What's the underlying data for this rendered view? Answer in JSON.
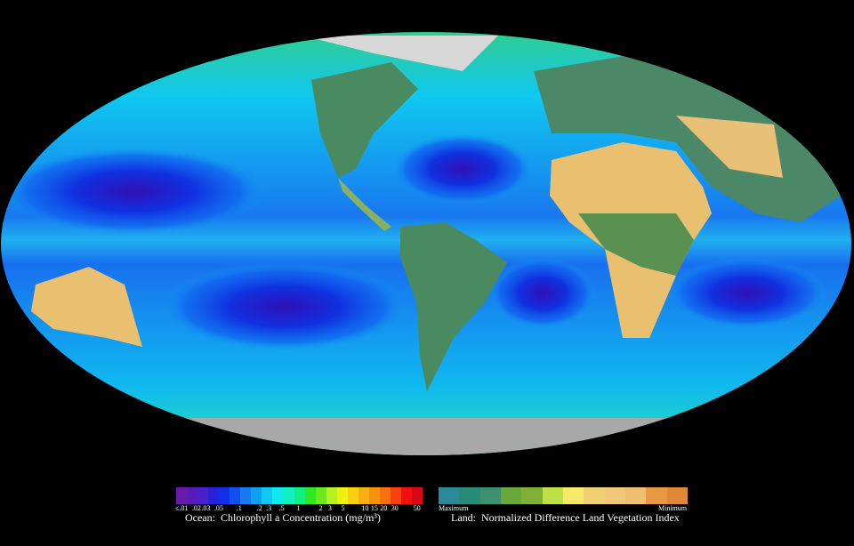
{
  "ocean_legend": {
    "caption_prefix": "Ocean:",
    "caption": "Chlorophyll a Concentration (mg/m³)",
    "ticks": [
      "≤.01",
      ".02",
      ".03",
      ".05",
      ".1",
      ".2",
      ".3",
      ".5",
      "1",
      "2",
      "3",
      "5",
      "10",
      "15",
      "20",
      "30",
      "50"
    ],
    "colors": [
      "#6a1aa8",
      "#5a1ab8",
      "#4a20c8",
      "#2a20d8",
      "#1030e8",
      "#1050f0",
      "#1a78f0",
      "#10a0f0",
      "#10c8f0",
      "#10e8f0",
      "#10f0c0",
      "#10f080",
      "#30e820",
      "#70e820",
      "#b8f020",
      "#f0f010",
      "#f8d010",
      "#f8b010",
      "#f89010",
      "#f87010",
      "#f84010",
      "#f01010",
      "#d80818"
    ]
  },
  "land_legend": {
    "caption_prefix": "Land:",
    "caption": "Normalized Difference Land Vegetation Index",
    "max_label": "Maximum",
    "min_label": "Minimum",
    "colors": [
      "#2a8a9a",
      "#2a8a78",
      "#3a9070",
      "#68a838",
      "#80b038",
      "#c0e048",
      "#f8e868",
      "#f0d070",
      "#f0c878",
      "#f0c070",
      "#e89840",
      "#e08838"
    ]
  }
}
